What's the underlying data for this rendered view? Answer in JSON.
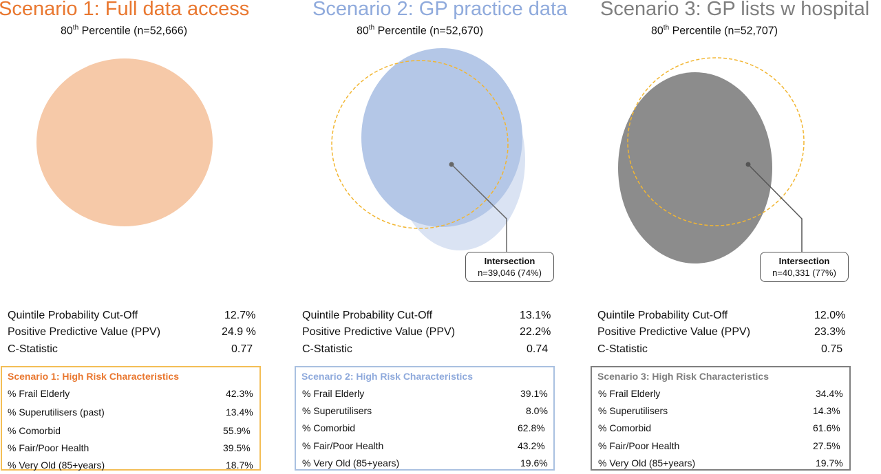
{
  "panels": [
    {
      "title": "Scenario 1: Full data access",
      "title_color": "#e9772f",
      "subtitle_prefix": "80",
      "subtitle_sup": "th",
      "subtitle_rest": " Percentile (n=52,666)",
      "fill_color": "#f6c9a8",
      "intersection": null,
      "metrics": [
        {
          "label": "Quintile Probability Cut-Off",
          "value": "12.7%"
        },
        {
          "label": "Positive Predictive Value (PPV)",
          "value": "24.9 %"
        },
        {
          "label": "C-Statistic",
          "value": "0.77"
        }
      ],
      "risk_title": "Scenario 1:  High Risk Characteristics",
      "risk_color": "#f3be55",
      "risk_title_color": "#e9772f",
      "risk_rows": [
        {
          "label": "% Frail Elderly",
          "value": "42.3%"
        },
        {
          "label": "% Superutilisers (past)",
          "value": "13.4%"
        },
        {
          "label": "% Comorbid",
          "value": "55.9%"
        },
        {
          "label": "% Fair/Poor Health",
          "value": "39.5%"
        },
        {
          "label": "% Very Old (85+years)",
          "value": "18.7%"
        }
      ]
    },
    {
      "title": "Scenario 2: GP practice data",
      "title_color": "#8faadc",
      "subtitle_prefix": "80",
      "subtitle_sup": "th",
      "subtitle_rest": " Percentile (n=52,670)",
      "fill_color": "#b4c7e7",
      "intersection": {
        "heading": "Intersection",
        "value": "n=39,046 (74%)"
      },
      "metrics": [
        {
          "label": "Quintile Probability Cut-Off",
          "value": "13.1%"
        },
        {
          "label": "Positive Predictive Value (PPV)",
          "value": "22.2%"
        },
        {
          "label": "C-Statistic",
          "value": "0.74"
        }
      ],
      "risk_title": "Scenario 2:  High Risk Characteristics",
      "risk_color": "#a9c0e0",
      "risk_title_color": "#8faadc",
      "risk_rows": [
        {
          "label": "% Frail Elderly",
          "value": "39.1%"
        },
        {
          "label": "% Superutilisers",
          "value": "8.0%"
        },
        {
          "label": "% Comorbid",
          "value": "62.8%"
        },
        {
          "label": "% Fair/Poor Health",
          "value": "43.2%"
        },
        {
          "label": "% Very Old (85+years)",
          "value": "19.6%"
        }
      ]
    },
    {
      "title": "Scenario 3: GP lists w hospital",
      "title_color": "#7f7f7f",
      "subtitle_prefix": "80",
      "subtitle_sup": "th",
      "subtitle_rest": " Percentile (n=52,707)",
      "fill_color": "#8c8c8c",
      "intersection": {
        "heading": "Intersection",
        "value": "n=40,331 (77%)"
      },
      "metrics": [
        {
          "label": "Quintile Probability Cut-Off",
          "value": "12.0%"
        },
        {
          "label": "Positive Predictive Value (PPV)",
          "value": "23.3%"
        },
        {
          "label": "C-Statistic",
          "value": "0.75"
        }
      ],
      "risk_title": "Scenario 3:  High Risk Characteristics",
      "risk_color": "#7f7f7f",
      "risk_title_color": "#7f7f7f",
      "risk_rows": [
        {
          "label": "% Frail Elderly",
          "value": "34.4%"
        },
        {
          "label": "% Superutilisers",
          "value": "14.3%"
        },
        {
          "label": "% Comorbid",
          "value": "61.6%"
        },
        {
          "label": "% Fair/Poor Health",
          "value": "27.5%"
        },
        {
          "label": "% Very Old (85+years)",
          "value": "19.7%"
        }
      ]
    }
  ],
  "reference_outline_color": "#f2b632"
}
